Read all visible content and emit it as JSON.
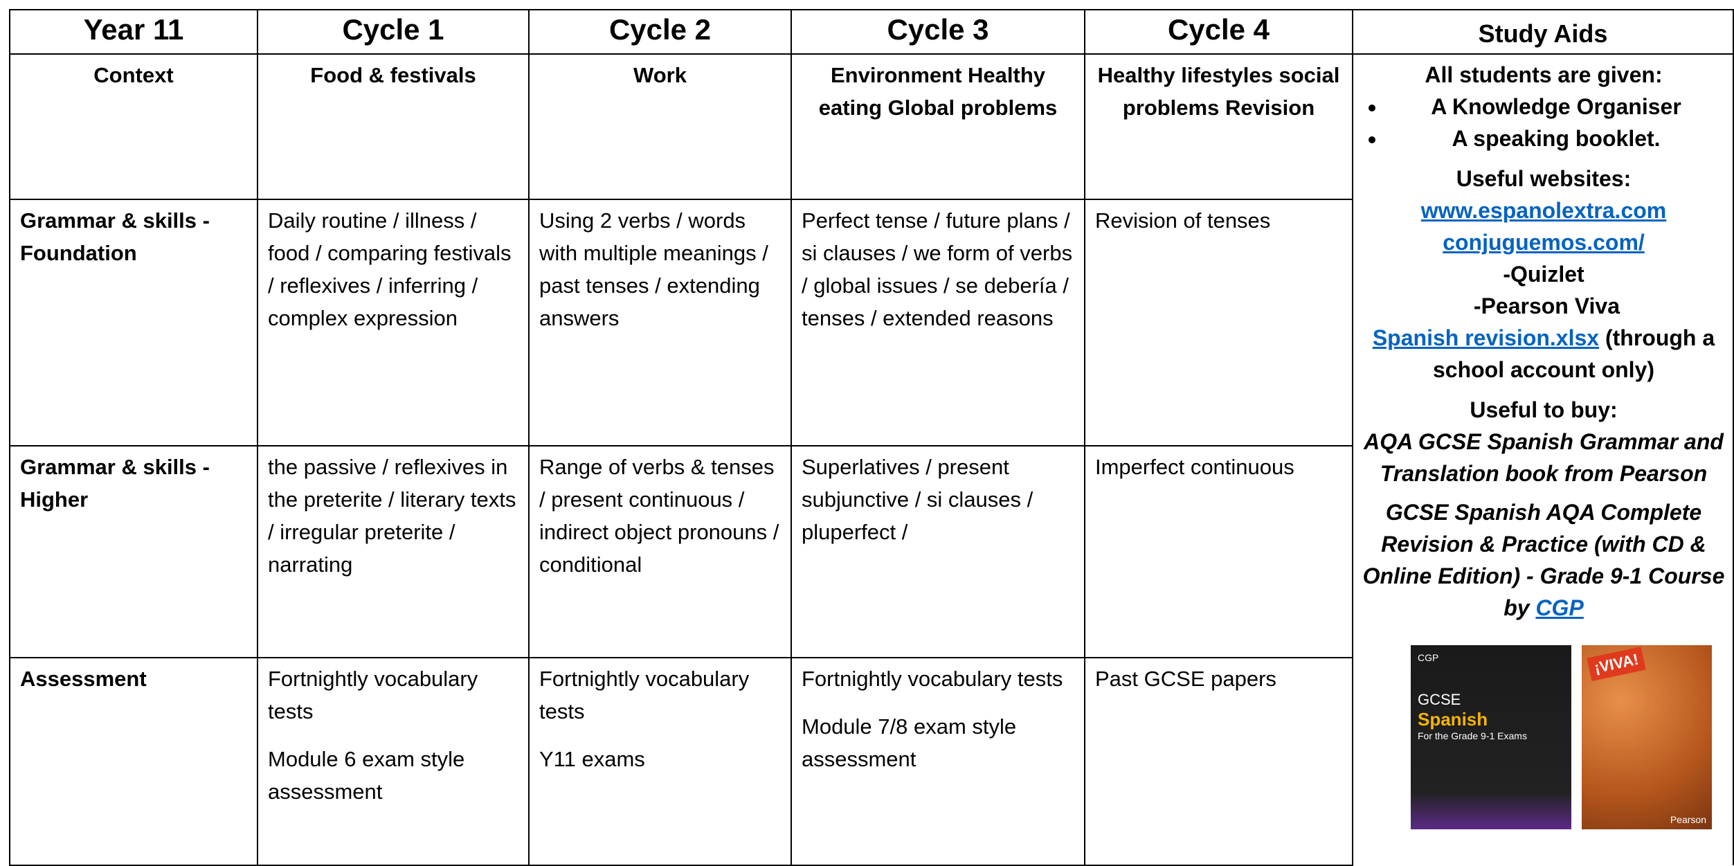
{
  "header": [
    "Year 11",
    "Cycle 1",
    "Cycle 2",
    "Cycle 3",
    "Cycle 4",
    "Study Aids"
  ],
  "rows": [
    [
      "Context",
      [
        "Food & festivals"
      ],
      [
        "Work"
      ],
      [
        "Environment Healthy eating      Global problems"
      ],
      [
        "Healthy lifestyles social problems Revision"
      ]
    ],
    [
      "Grammar & skills - Foundation",
      [
        "Daily routine / illness / food / comparing festivals / reflexives / inferring / complex expression"
      ],
      [
        "Using 2 verbs / words with multiple meanings / past tenses / extending answers"
      ],
      [
        "Perfect tense / future plans / si clauses / we form of verbs / global issues / se debería / tenses / extended reasons"
      ],
      [
        "Revision of tenses"
      ]
    ],
    [
      "Grammar & skills - Higher",
      [
        "the passive / reflexives in the preterite / literary texts / irregular preterite / narrating"
      ],
      [
        "Range of verbs & tenses / present continuous / indirect object pronouns / conditional"
      ],
      [
        "Superlatives / present subjunctive / si clauses / pluperfect /"
      ],
      [
        "Imperfect continuous"
      ]
    ],
    [
      "Assessment",
      [
        "Fortnightly vocabulary tests",
        "Module 6 exam style assessment"
      ],
      [
        "Fortnightly vocabulary tests",
        "Y11 exams"
      ],
      [
        "Fortnightly vocabulary tests",
        "Module 7/8 exam style assessment"
      ],
      [
        "Past GCSE papers"
      ]
    ]
  ],
  "study_aids": {
    "given_heading": "All students are given:",
    "given_items": [
      "A Knowledge Organiser",
      "A speaking booklet."
    ],
    "websites_heading": "Useful websites:",
    "links": [
      "www.espanolextra.com",
      "conjuguemos.com/"
    ],
    "others": [
      "-Quizlet",
      " -Pearson Viva"
    ],
    "spreadsheet_link": "Spanish revision.xlsx",
    "spreadsheet_note": " (through a school account only)",
    "buy_heading": "Useful to buy:",
    "book_1": "AQA GCSE Spanish Grammar and Translation book from Pearson",
    "book_2": "GCSE Spanish AQA Complete Revision & Practice (with CD & Online Edition) - Grade 9-1 Course by ",
    "cgp_link": "CGP",
    "cover_1": [
      "CGP",
      "GCSE",
      "Spanish",
      "For the Grade 9-1 Exams"
    ],
    "cover_2": [
      "¡VIVA!",
      "Pearson"
    ]
  }
}
